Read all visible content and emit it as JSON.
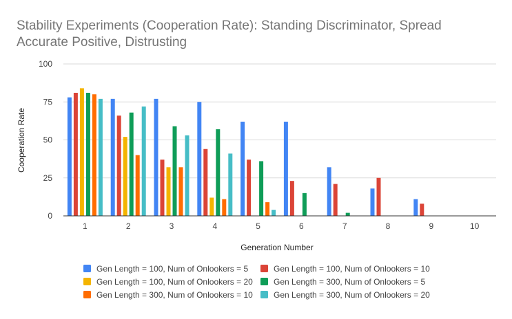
{
  "chart_data": {
    "type": "bar",
    "title_lines": [
      "Stability Experiments (Cooperation Rate): Standing Discriminator, Spread",
      "Accurate Positive, Distrusting"
    ],
    "xlabel": "Generation Number",
    "ylabel": "Cooperation Rate",
    "ylim": [
      0,
      100
    ],
    "yticks": [
      "0",
      "25",
      "50",
      "75",
      "100"
    ],
    "categories": [
      "1",
      "2",
      "3",
      "4",
      "5",
      "6",
      "7",
      "8",
      "9",
      "10"
    ],
    "grid": true,
    "legend_position": "bottom",
    "series": [
      {
        "name": "Gen Length = 100, Num of Onlookers = 5",
        "color": "#4285f4",
        "values": [
          78,
          77,
          77,
          75,
          62,
          62,
          32,
          18,
          11,
          0
        ]
      },
      {
        "name": "Gen Length = 100, Num of Onlookers = 10",
        "color": "#db4437",
        "values": [
          81,
          66,
          37,
          44,
          37,
          23,
          21,
          25,
          8,
          0
        ]
      },
      {
        "name": "Gen Length = 100, Num of Onlookers = 20",
        "color": "#f4b400",
        "values": [
          84,
          52,
          32,
          12,
          0,
          0,
          0,
          0,
          0,
          0
        ]
      },
      {
        "name": "Gen Length = 300, Num of Onlookers = 5",
        "color": "#0f9d58",
        "values": [
          81,
          68,
          59,
          57,
          36,
          15,
          2,
          0,
          0,
          0
        ]
      },
      {
        "name": "Gen Length = 300, Num of Onlookers = 10",
        "color": "#ff6d01",
        "values": [
          80,
          40,
          32,
          11,
          9,
          0,
          0,
          0,
          0,
          0
        ]
      },
      {
        "name": "Gen Length = 300, Num of Onlookers = 20",
        "color": "#46bdc6",
        "values": [
          77,
          72,
          53,
          41,
          4,
          0,
          0,
          0,
          0,
          0
        ]
      }
    ]
  }
}
